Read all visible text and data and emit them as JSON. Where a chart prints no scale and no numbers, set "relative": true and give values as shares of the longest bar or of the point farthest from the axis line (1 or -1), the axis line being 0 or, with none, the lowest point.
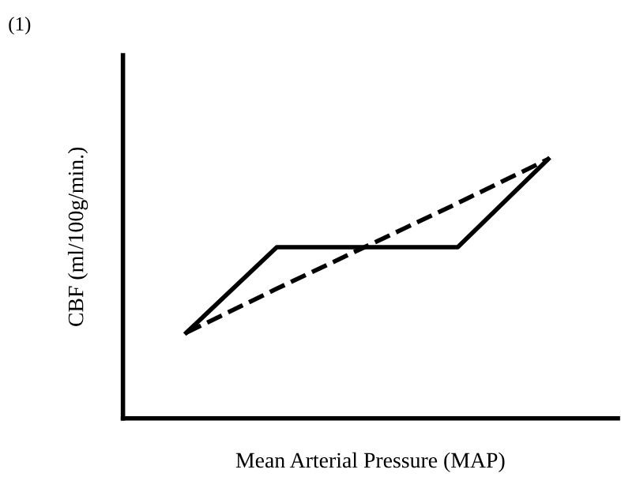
{
  "chart_data": {
    "type": "line",
    "relative": true,
    "title": "(1)",
    "xlabel": "Mean Arterial Pressure (MAP)",
    "ylabel": "CBF (ml/100g/min.)",
    "categories": [
      null,
      null,
      null,
      null,
      null
    ],
    "series": [
      {
        "color": "#000000",
        "line_style": "solid",
        "values": [
          0.33,
          0.66,
          0.66,
          0.66,
          1
        ]
      },
      {
        "color": "#000000",
        "line_style": "dashed",
        "values": [
          0.33,
          0.5,
          0.665,
          0.83,
          1
        ]
      }
    ],
    "grid": false,
    "legend": false,
    "marker": "none"
  }
}
